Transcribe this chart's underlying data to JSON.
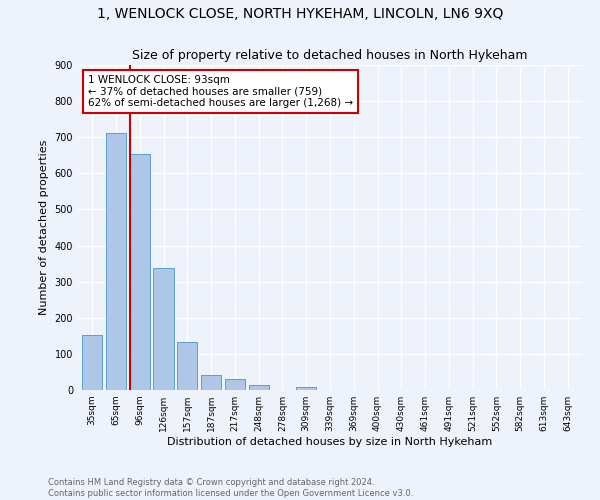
{
  "title": "1, WENLOCK CLOSE, NORTH HYKEHAM, LINCOLN, LN6 9XQ",
  "subtitle": "Size of property relative to detached houses in North Hykeham",
  "xlabel": "Distribution of detached houses by size in North Hykeham",
  "ylabel": "Number of detached properties",
  "bar_labels": [
    "35sqm",
    "65sqm",
    "96sqm",
    "126sqm",
    "157sqm",
    "187sqm",
    "217sqm",
    "248sqm",
    "278sqm",
    "309sqm",
    "339sqm",
    "369sqm",
    "400sqm",
    "430sqm",
    "461sqm",
    "491sqm",
    "521sqm",
    "552sqm",
    "582sqm",
    "613sqm",
    "643sqm"
  ],
  "bar_values": [
    152,
    712,
    653,
    337,
    132,
    42,
    30,
    13,
    0,
    8,
    0,
    0,
    0,
    0,
    0,
    0,
    0,
    0,
    0,
    0,
    0
  ],
  "bar_color": "#aec6e8",
  "bar_edge_color": "#5a9fd4",
  "property_line_color": "#cc0000",
  "annotation_text": "1 WENLOCK CLOSE: 93sqm\n← 37% of detached houses are smaller (759)\n62% of semi-detached houses are larger (1,268) →",
  "annotation_box_color": "#ffffff",
  "annotation_box_edge": "#cc0000",
  "footer": "Contains HM Land Registry data © Crown copyright and database right 2024.\nContains public sector information licensed under the Open Government Licence v3.0.",
  "ylim": [
    0,
    900
  ],
  "bg_color": "#eef2fa",
  "grid_color": "#ffffff",
  "title_fontsize": 10,
  "subtitle_fontsize": 9,
  "ylabel_fontsize": 8,
  "xlabel_fontsize": 8,
  "tick_fontsize": 6.5,
  "footer_fontsize": 6,
  "annot_fontsize": 7.5
}
